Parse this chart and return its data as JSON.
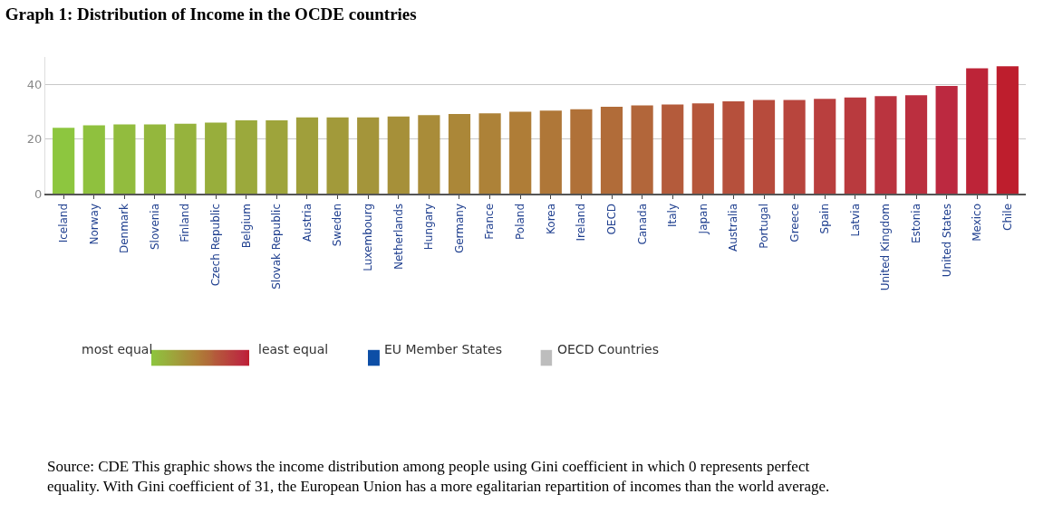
{
  "chart_data": {
    "type": "bar",
    "title": "Graph 1: Distribution of Income in the OCDE countries",
    "categories": [
      "Iceland",
      "Norway",
      "Denmark",
      "Slovenia",
      "Finland",
      "Czech Republic",
      "Belgium",
      "Slovak Republic",
      "Austria",
      "Sweden",
      "Luxembourg",
      "Netherlands",
      "Hungary",
      "Germany",
      "France",
      "Poland",
      "Korea",
      "Ireland",
      "OECD",
      "Canada",
      "Italy",
      "Japan",
      "Australia",
      "Portugal",
      "Greece",
      "Spain",
      "Latvia",
      "United Kingdom",
      "Estonia",
      "United States",
      "Mexico",
      "Chile"
    ],
    "values": [
      24.2,
      25.1,
      25.4,
      25.4,
      25.7,
      26.1,
      26.9,
      26.9,
      28.0,
      28.0,
      28.0,
      28.3,
      28.8,
      29.2,
      29.5,
      30.1,
      30.5,
      31.0,
      31.9,
      32.4,
      32.7,
      33.1,
      33.9,
      34.4,
      34.4,
      34.8,
      35.3,
      35.8,
      36.1,
      39.5,
      46.0,
      46.7
    ],
    "colors": [
      "#8dc63f",
      "#8fc13e",
      "#92bc3e",
      "#94b73d",
      "#96b33d",
      "#98ae3c",
      "#9ba93c",
      "#9ea43b",
      "#a09f3b",
      "#a29a3a",
      "#a4953a",
      "#a69039",
      "#a98c39",
      "#ab8738",
      "#ad8238",
      "#af7d37",
      "#af7738",
      "#b07138",
      "#b16c39",
      "#b2663a",
      "#b45b3b",
      "#b5563b",
      "#b6503c",
      "#b74b3c",
      "#b8453d",
      "#b93f3e",
      "#b93a3e",
      "#ba343f",
      "#bb2f3f",
      "#bc2940",
      "#bd2438",
      "#be1e2d"
    ],
    "ylim": [
      0,
      50
    ],
    "yticks": [
      0,
      20,
      40
    ],
    "grid": "y",
    "annotations": [
      "most equal",
      "least equal",
      "EU Member States",
      "OECD Countries",
      "Source: CDE This graphic shows the income distribution among people using Gini coefficient in which 0 represents perfect equality. With Gini coefficient of 31, the European Union has a more egalitarian repartition of incomes than the world average."
    ]
  }
}
